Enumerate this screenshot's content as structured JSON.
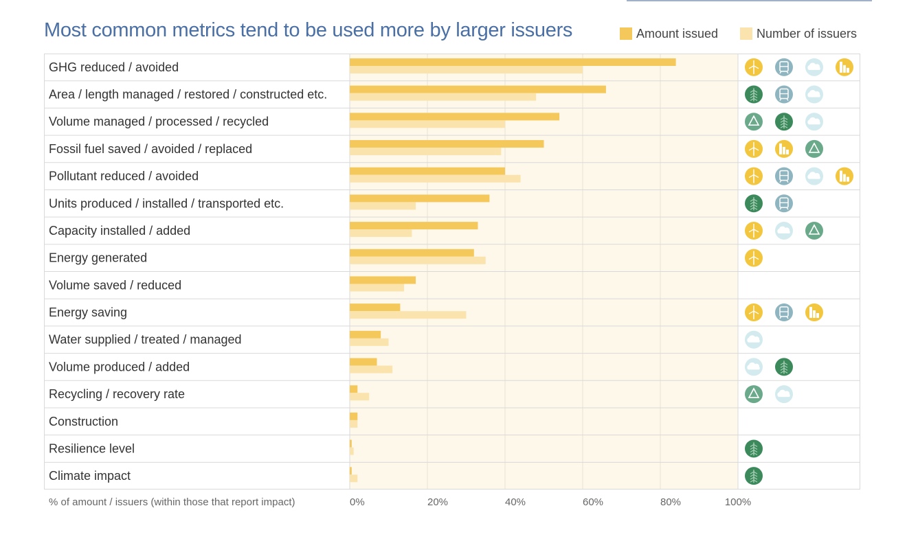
{
  "title": "Most common metrics tend to be used more by larger issuers",
  "legend": [
    {
      "label": "Amount issued",
      "color": "#f5c85c"
    },
    {
      "label": "Number of issuers",
      "color": "#fbe3ad"
    }
  ],
  "icon_colors": {
    "energy": "#f3c63f",
    "transport": "#8fb6c0",
    "climate": "#d3ebee",
    "buildings": "#f3c63f",
    "nature": "#3c8a5c",
    "recycling": "#6aa98a"
  },
  "chart_data": {
    "type": "bar",
    "orientation": "horizontal",
    "categories": [
      "GHG reduced / avoided",
      "Area / length managed / restored / constructed etc.",
      "Volume managed / processed / recycled",
      "Fossil fuel saved / avoided / replaced",
      "Pollutant reduced / avoided",
      "Units produced / installed / transported etc.",
      "Capacity installed / added",
      "Energy generated",
      "Volume saved / reduced",
      "Energy saving",
      "Water supplied / treated / managed",
      "Volume produced / added",
      "Recycling / recovery rate",
      "Construction",
      "Resilience level",
      "Climate impact"
    ],
    "series": [
      {
        "name": "Amount issued",
        "color": "#f5c85c",
        "values": [
          84,
          66,
          54,
          50,
          40,
          36,
          33,
          32,
          17,
          13,
          8,
          7,
          2,
          2,
          0.5,
          0.5
        ]
      },
      {
        "name": "Number of issuers",
        "color": "#fbe3ad",
        "values": [
          60,
          48,
          40,
          39,
          44,
          17,
          16,
          35,
          14,
          30,
          10,
          11,
          5,
          2,
          1,
          2
        ]
      }
    ],
    "icons": [
      [
        "energy",
        "transport",
        "climate",
        "buildings"
      ],
      [
        "nature",
        "transport",
        "climate"
      ],
      [
        "recycling",
        "nature",
        "climate"
      ],
      [
        "energy",
        "buildings",
        "recycling"
      ],
      [
        "energy",
        "transport",
        "climate",
        "buildings"
      ],
      [
        "nature",
        "transport"
      ],
      [
        "energy",
        "climate",
        "recycling"
      ],
      [
        "energy"
      ],
      [],
      [
        "energy",
        "transport",
        "buildings"
      ],
      [
        "climate"
      ],
      [
        "climate",
        "nature"
      ],
      [
        "recycling",
        "climate"
      ],
      [],
      [
        "nature"
      ],
      [
        "nature"
      ]
    ],
    "xlabel": "% of amount / issuers (within those that report impact)",
    "xlim": [
      0,
      100
    ],
    "xticks": [
      "0%",
      "20%",
      "40%",
      "60%",
      "80%",
      "100%"
    ],
    "grid": true
  }
}
